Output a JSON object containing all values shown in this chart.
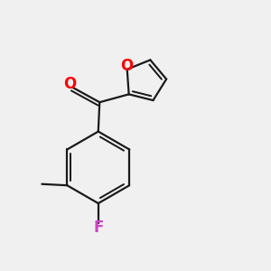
{
  "background_color": "#f0f0f0",
  "bond_color": "#1a1a1a",
  "oxygen_color": "#ff0000",
  "fluorine_color": "#cc44cc",
  "line_width": 1.6,
  "figsize": [
    3.0,
    3.0
  ],
  "dpi": 100,
  "xlim": [
    0,
    10
  ],
  "ylim": [
    0,
    10
  ]
}
